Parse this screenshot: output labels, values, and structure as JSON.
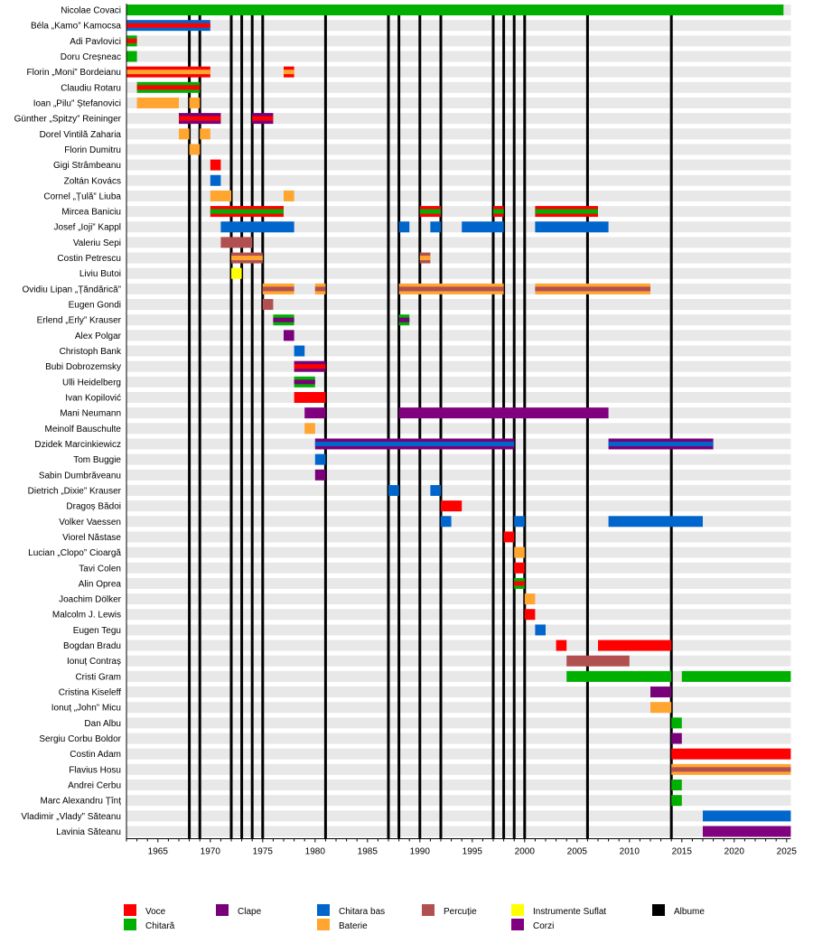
{
  "chart_data": {
    "type": "timeline",
    "title": "",
    "x_axis": {
      "min": 1962,
      "max": 2025.4,
      "major_ticks": [
        1965,
        1970,
        1975,
        1980,
        1985,
        1990,
        1995,
        2000,
        2005,
        2010,
        2015,
        2020,
        2025
      ],
      "minor_tick_step": 1
    },
    "colors": {
      "Voce": "#ff0000",
      "Chitară": "#00b000",
      "Clape": "#780078",
      "Chitara bas": "#0066cc",
      "Baterie": "#ffa530",
      "Percuție": "#b05050",
      "Instrumente Suflat": "#ffff00",
      "Corzi": "#800080",
      "Albume": "#000000"
    },
    "legend": [
      {
        "label": "Voce",
        "key": "Voce"
      },
      {
        "label": "Chitară",
        "key": "Chitară"
      },
      {
        "label": "Clape",
        "key": "Clape"
      },
      {
        "label": "Chitara bas",
        "key": "Chitara bas"
      },
      {
        "label": "Baterie",
        "key": "Baterie"
      },
      {
        "label": "Percuție",
        "key": "Percuție"
      },
      {
        "label": "Instrumente Suflat",
        "key": "Instrumente Suflat"
      },
      {
        "label": "Corzi",
        "key": "Corzi"
      },
      {
        "label": "Albume",
        "key": "Albume"
      }
    ],
    "albums": [
      1968,
      1969,
      1972,
      1973,
      1974,
      1975,
      1981,
      1987,
      1988,
      1990,
      1992,
      1997,
      1998,
      1999,
      2000,
      2006,
      2014
    ],
    "members": [
      {
        "name": "Nicolae Covaci",
        "periods": [
          {
            "from": 1962,
            "to": 2024.7,
            "role": "Chitară"
          }
        ]
      },
      {
        "name": "Béla „Kamo” Kamocsa",
        "periods": [
          {
            "from": 1962,
            "to": 1970,
            "role": "Chitara bas",
            "stripe": "Voce"
          }
        ]
      },
      {
        "name": "Adi Pavlovici",
        "periods": [
          {
            "from": 1962,
            "to": 1963,
            "role": "Chitară",
            "stripe": "Voce"
          }
        ]
      },
      {
        "name": "Doru Creșneac",
        "periods": [
          {
            "from": 1962,
            "to": 1963,
            "role": "Chitară"
          }
        ]
      },
      {
        "name": "Florin „Moni” Bordeianu",
        "periods": [
          {
            "from": 1962,
            "to": 1970,
            "role": "Voce",
            "stripe": "Baterie"
          },
          {
            "from": 1977,
            "to": 1978,
            "role": "Voce",
            "stripe": "Baterie"
          }
        ]
      },
      {
        "name": "Claudiu Rotaru",
        "periods": [
          {
            "from": 1963,
            "to": 1969,
            "role": "Chitară",
            "stripe": "Voce"
          }
        ]
      },
      {
        "name": "Ioan „Pilu” Ștefanovici",
        "periods": [
          {
            "from": 1963,
            "to": 1967,
            "role": "Baterie"
          },
          {
            "from": 1968,
            "to": 1969,
            "role": "Baterie"
          }
        ]
      },
      {
        "name": "Günther „Spitzy” Reininger",
        "periods": [
          {
            "from": 1967,
            "to": 1971,
            "role": "Clape",
            "stripe": "Voce"
          },
          {
            "from": 1974,
            "to": 1976,
            "role": "Clape",
            "stripe": "Voce"
          }
        ]
      },
      {
        "name": "Dorel Vintilă Zaharia",
        "periods": [
          {
            "from": 1967,
            "to": 1968,
            "role": "Baterie"
          },
          {
            "from": 1969,
            "to": 1970,
            "role": "Baterie"
          }
        ]
      },
      {
        "name": "Florin Dumitru",
        "periods": [
          {
            "from": 1968,
            "to": 1969,
            "role": "Baterie"
          }
        ]
      },
      {
        "name": "Gigi Strâmbeanu",
        "periods": [
          {
            "from": 1970,
            "to": 1971,
            "role": "Voce"
          }
        ]
      },
      {
        "name": "Zoltán Kovács",
        "periods": [
          {
            "from": 1970,
            "to": 1971,
            "role": "Chitara bas"
          }
        ]
      },
      {
        "name": "Cornel „Țulă” Liuba",
        "periods": [
          {
            "from": 1970,
            "to": 1972,
            "role": "Baterie"
          },
          {
            "from": 1977,
            "to": 1978,
            "role": "Baterie"
          }
        ]
      },
      {
        "name": "Mircea Baniciu",
        "periods": [
          {
            "from": 1970,
            "to": 1977,
            "role": "Voce",
            "stripe": "Chitară"
          },
          {
            "from": 1990,
            "to": 1992,
            "role": "Voce",
            "stripe": "Chitară"
          },
          {
            "from": 1997,
            "to": 1998,
            "role": "Voce",
            "stripe": "Chitară"
          },
          {
            "from": 2001,
            "to": 2007,
            "role": "Voce",
            "stripe": "Chitară"
          }
        ]
      },
      {
        "name": "Josef „Ioji” Kappl",
        "periods": [
          {
            "from": 1971,
            "to": 1978,
            "role": "Chitara bas"
          },
          {
            "from": 1988,
            "to": 1989,
            "role": "Chitara bas"
          },
          {
            "from": 1991,
            "to": 1992,
            "role": "Chitara bas"
          },
          {
            "from": 1994,
            "to": 1998,
            "role": "Chitara bas"
          },
          {
            "from": 2001,
            "to": 2008,
            "role": "Chitara bas"
          }
        ]
      },
      {
        "name": "Valeriu Sepi",
        "periods": [
          {
            "from": 1971,
            "to": 1974,
            "role": "Percuție"
          }
        ]
      },
      {
        "name": "Costin Petrescu",
        "periods": [
          {
            "from": 1972,
            "to": 1975,
            "role": "Percuție",
            "stripe": "Baterie"
          },
          {
            "from": 1990,
            "to": 1991,
            "role": "Percuție",
            "stripe": "Baterie"
          }
        ]
      },
      {
        "name": "Liviu Butoi",
        "periods": [
          {
            "from": 1972,
            "to": 1973,
            "role": "Instrumente Suflat"
          }
        ]
      },
      {
        "name": "Ovidiu Lipan „Țăndărică”",
        "periods": [
          {
            "from": 1975,
            "to": 1978,
            "role": "Baterie",
            "stripe": "Percuție"
          },
          {
            "from": 1980,
            "to": 1981,
            "role": "Baterie",
            "stripe": "Percuție"
          },
          {
            "from": 1988,
            "to": 1998,
            "role": "Baterie",
            "stripe": "Percuție"
          },
          {
            "from": 2001,
            "to": 2012,
            "role": "Baterie",
            "stripe": "Percuție"
          }
        ]
      },
      {
        "name": "Eugen Gondi",
        "periods": [
          {
            "from": 1975,
            "to": 1976,
            "role": "Percuție"
          }
        ]
      },
      {
        "name": "Erlend „Erly” Krauser",
        "periods": [
          {
            "from": 1976,
            "to": 1978,
            "role": "Chitară",
            "stripe": "Clape"
          },
          {
            "from": 1988,
            "to": 1989,
            "role": "Chitară",
            "stripe": "Clape"
          }
        ]
      },
      {
        "name": "Alex Polgar",
        "periods": [
          {
            "from": 1977,
            "to": 1978,
            "role": "Clape"
          }
        ]
      },
      {
        "name": "Christoph Bank",
        "periods": [
          {
            "from": 1978,
            "to": 1979,
            "role": "Chitara bas"
          }
        ]
      },
      {
        "name": "Bubi Dobrozemsky",
        "periods": [
          {
            "from": 1978,
            "to": 1981,
            "role": "Clape",
            "stripe": "Voce"
          }
        ]
      },
      {
        "name": "Ulli Heidelberg",
        "periods": [
          {
            "from": 1978,
            "to": 1980,
            "role": "Chitară",
            "stripe": "Clape"
          }
        ]
      },
      {
        "name": "Ivan Kopilović",
        "periods": [
          {
            "from": 1978,
            "to": 1981,
            "role": "Voce"
          }
        ]
      },
      {
        "name": "Mani Neumann",
        "periods": [
          {
            "from": 1979,
            "to": 1981,
            "role": "Corzi"
          },
          {
            "from": 1988,
            "to": 2008,
            "role": "Corzi"
          }
        ]
      },
      {
        "name": "Meinolf Bauschulte",
        "periods": [
          {
            "from": 1979,
            "to": 1980,
            "role": "Baterie"
          }
        ]
      },
      {
        "name": "Dzidek Marcinkiewicz",
        "periods": [
          {
            "from": 1980,
            "to": 1999,
            "role": "Clape",
            "stripe": "Chitara bas"
          },
          {
            "from": 2008,
            "to": 2018,
            "role": "Clape",
            "stripe": "Chitara bas"
          }
        ]
      },
      {
        "name": "Tom Buggie",
        "periods": [
          {
            "from": 1980,
            "to": 1981,
            "role": "Chitara bas"
          }
        ]
      },
      {
        "name": "Sabin Dumbrăveanu",
        "periods": [
          {
            "from": 1980,
            "to": 1981,
            "role": "Clape"
          }
        ]
      },
      {
        "name": "Dietrich „Dixie” Krauser",
        "periods": [
          {
            "from": 1987,
            "to": 1988,
            "role": "Chitara bas"
          },
          {
            "from": 1991,
            "to": 1992,
            "role": "Chitara bas"
          }
        ]
      },
      {
        "name": "Dragoș Bădoi",
        "periods": [
          {
            "from": 1992,
            "to": 1994,
            "role": "Voce"
          }
        ]
      },
      {
        "name": "Volker Vaessen",
        "periods": [
          {
            "from": 1992,
            "to": 1993,
            "role": "Chitara bas"
          },
          {
            "from": 1999,
            "to": 2000,
            "role": "Chitara bas"
          },
          {
            "from": 2008,
            "to": 2017,
            "role": "Chitara bas"
          }
        ]
      },
      {
        "name": "Viorel Năstase",
        "periods": [
          {
            "from": 1998,
            "to": 1999,
            "role": "Voce"
          }
        ]
      },
      {
        "name": "Lucian „Clopo” Cioargă",
        "periods": [
          {
            "from": 1999,
            "to": 2000,
            "role": "Baterie"
          }
        ]
      },
      {
        "name": "Tavi Colen",
        "periods": [
          {
            "from": 1999,
            "to": 2000,
            "role": "Voce"
          }
        ]
      },
      {
        "name": "Alin Oprea",
        "periods": [
          {
            "from": 1999,
            "to": 2000,
            "role": "Chitară",
            "stripe": "Voce"
          }
        ]
      },
      {
        "name": "Joachim Dölker",
        "periods": [
          {
            "from": 2000,
            "to": 2001,
            "role": "Baterie"
          }
        ]
      },
      {
        "name": "Malcolm J. Lewis",
        "periods": [
          {
            "from": 2000,
            "to": 2001,
            "role": "Voce"
          }
        ]
      },
      {
        "name": "Eugen Tegu",
        "periods": [
          {
            "from": 2001,
            "to": 2002,
            "role": "Chitara bas"
          }
        ]
      },
      {
        "name": "Bogdan Bradu",
        "periods": [
          {
            "from": 2003,
            "to": 2004,
            "role": "Voce"
          },
          {
            "from": 2007,
            "to": 2014,
            "role": "Voce"
          }
        ]
      },
      {
        "name": "Ionuț Contraș",
        "periods": [
          {
            "from": 2004,
            "to": 2010,
            "role": "Percuție"
          }
        ]
      },
      {
        "name": "Cristi Gram",
        "periods": [
          {
            "from": 2004,
            "to": 2014,
            "role": "Chitară"
          },
          {
            "from": 2015,
            "to": 2025.4,
            "role": "Chitară"
          }
        ]
      },
      {
        "name": "Cristina Kiseleff",
        "periods": [
          {
            "from": 2012,
            "to": 2014,
            "role": "Clape"
          }
        ]
      },
      {
        "name": "Ionuț „John” Micu",
        "periods": [
          {
            "from": 2012,
            "to": 2014,
            "role": "Baterie"
          }
        ]
      },
      {
        "name": "Dan Albu",
        "periods": [
          {
            "from": 2014,
            "to": 2015,
            "role": "Chitară"
          }
        ]
      },
      {
        "name": "Sergiu Corbu Boldor",
        "periods": [
          {
            "from": 2014,
            "to": 2015,
            "role": "Clape"
          }
        ]
      },
      {
        "name": "Costin Adam",
        "periods": [
          {
            "from": 2014,
            "to": 2025.4,
            "role": "Voce"
          }
        ]
      },
      {
        "name": "Flavius Hosu",
        "periods": [
          {
            "from": 2014,
            "to": 2025.4,
            "role": "Baterie",
            "stripe": "Percuție"
          }
        ]
      },
      {
        "name": "Andrei Cerbu",
        "periods": [
          {
            "from": 2014,
            "to": 2015,
            "role": "Chitară"
          }
        ]
      },
      {
        "name": "Marc Alexandru Țînț",
        "periods": [
          {
            "from": 2014,
            "to": 2015,
            "role": "Chitară"
          }
        ]
      },
      {
        "name": "Vladimir „Vlady” Săteanu",
        "periods": [
          {
            "from": 2017,
            "to": 2025.4,
            "role": "Chitara bas"
          }
        ]
      },
      {
        "name": "Lavinia Săteanu",
        "periods": [
          {
            "from": 2017,
            "to": 2025.4,
            "role": "Corzi"
          }
        ]
      }
    ]
  }
}
